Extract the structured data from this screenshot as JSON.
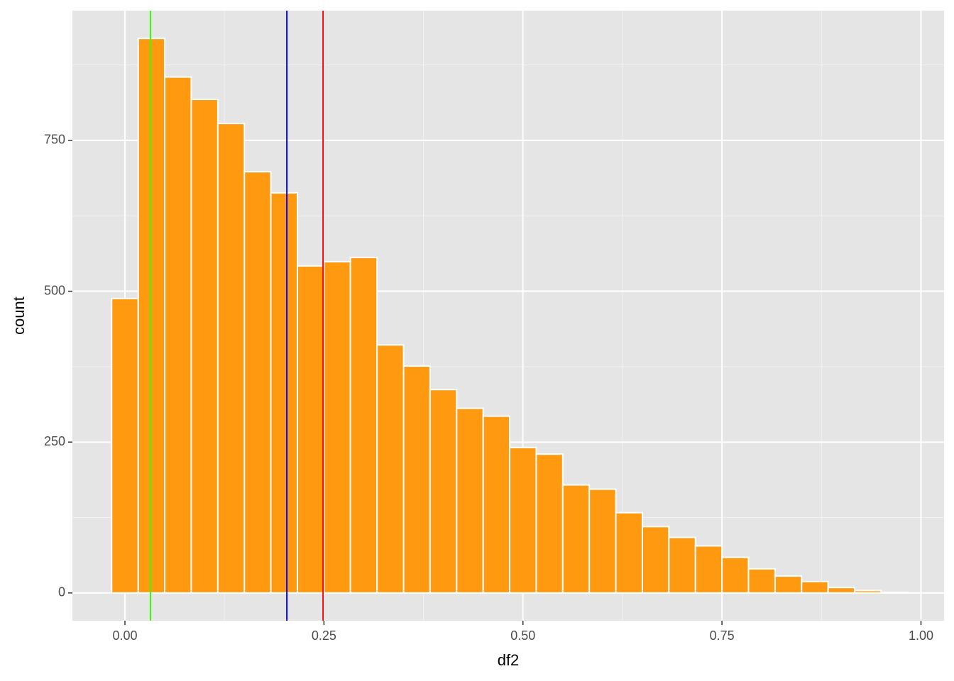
{
  "chart_data": {
    "type": "histogram",
    "x_label": "df2",
    "y_label": "count",
    "bins": [
      -0.0167,
      0.0167,
      0.05,
      0.0833,
      0.1167,
      0.15,
      0.1833,
      0.2167,
      0.25,
      0.2833,
      0.3167,
      0.35,
      0.3833,
      0.4167,
      0.45,
      0.4833,
      0.5167,
      0.55,
      0.5833,
      0.6167,
      0.65,
      0.6833,
      0.7167,
      0.75,
      0.7833,
      0.8167,
      0.85,
      0.8833,
      0.9167,
      0.95,
      0.9833
    ],
    "values": [
      488,
      919,
      855,
      818,
      778,
      698,
      663,
      542,
      549,
      556,
      411,
      376,
      337,
      306,
      293,
      241,
      230,
      179,
      172,
      133,
      110,
      92,
      78,
      59,
      40,
      28,
      19,
      9,
      4,
      1
    ],
    "color": "#ff990f",
    "edge_color": "#ffffff",
    "vlines": [
      {
        "x": 0.0321,
        "color": "#33ff00"
      },
      {
        "x": 0.2034,
        "color": "#0000ff"
      },
      {
        "x": 0.2489,
        "color": "#ff0000"
      }
    ],
    "xlim": [
      -0.066,
      1.029
    ],
    "ylim": [
      -46,
      965
    ],
    "xticks": [
      {
        "value": 0,
        "label": "0.00"
      },
      {
        "value": 0.25,
        "label": "0.25"
      },
      {
        "value": 0.5,
        "label": "0.50"
      },
      {
        "value": 0.75,
        "label": "0.75"
      },
      {
        "value": 1,
        "label": "1.00"
      }
    ],
    "yticks": [
      0,
      250,
      500,
      750
    ],
    "grid": true,
    "minor_grid": true
  }
}
